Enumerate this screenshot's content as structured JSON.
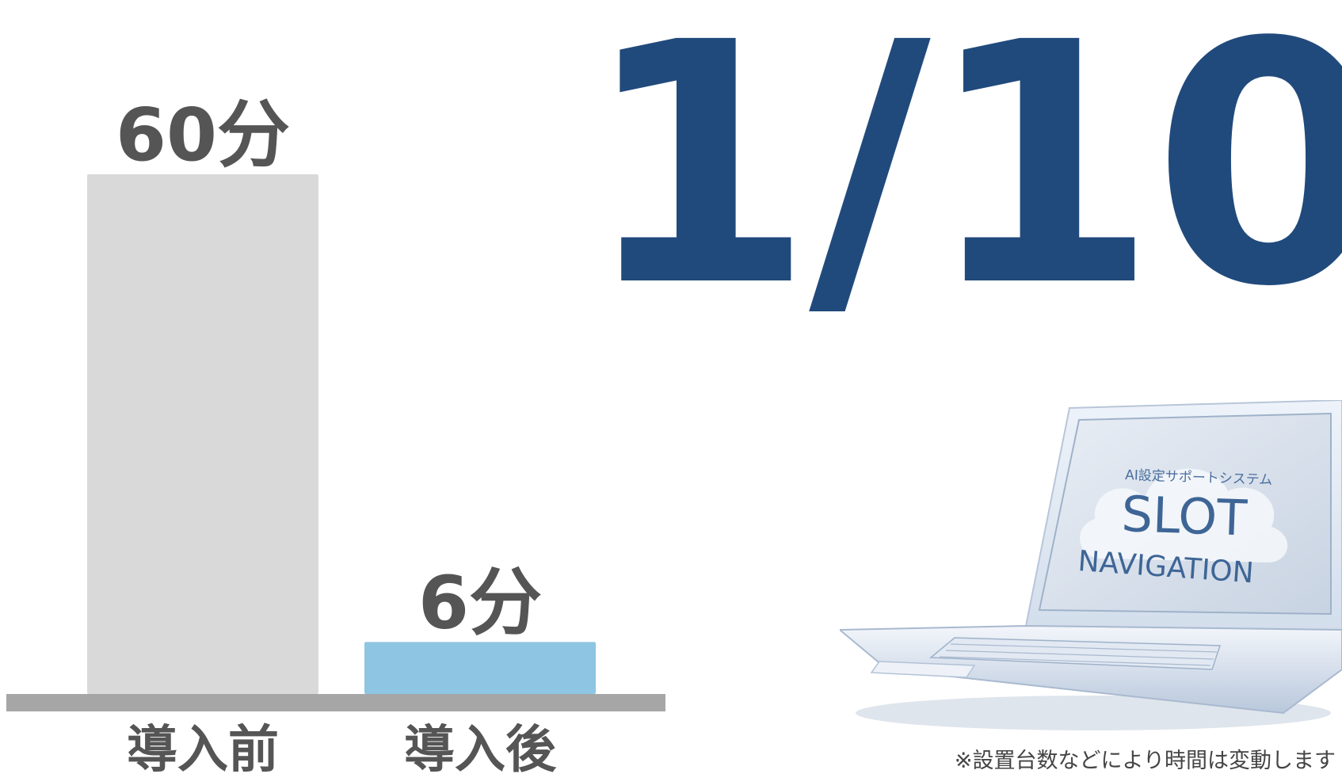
{
  "chart_data": {
    "type": "bar",
    "categories": [
      "導入前",
      "導入後"
    ],
    "values": [
      60,
      6
    ],
    "value_labels": [
      "60分",
      "6分"
    ],
    "colors": [
      "#d9d9d9",
      "#8ec5e2"
    ],
    "baseline_color": "#a6a6a6",
    "ylim": [
      0,
      60
    ],
    "title": "",
    "xlabel": "",
    "ylabel": ""
  },
  "headline": {
    "text": "1/10",
    "color": "#214a7c"
  },
  "laptop": {
    "icon": "laptop-icon",
    "screen_subtitle": "AI設定サポートシステム",
    "screen_title_line1": "SLOT",
    "screen_title_line2": "NAVIGATION"
  },
  "footnote": "※設置台数などにより時間は変動します"
}
